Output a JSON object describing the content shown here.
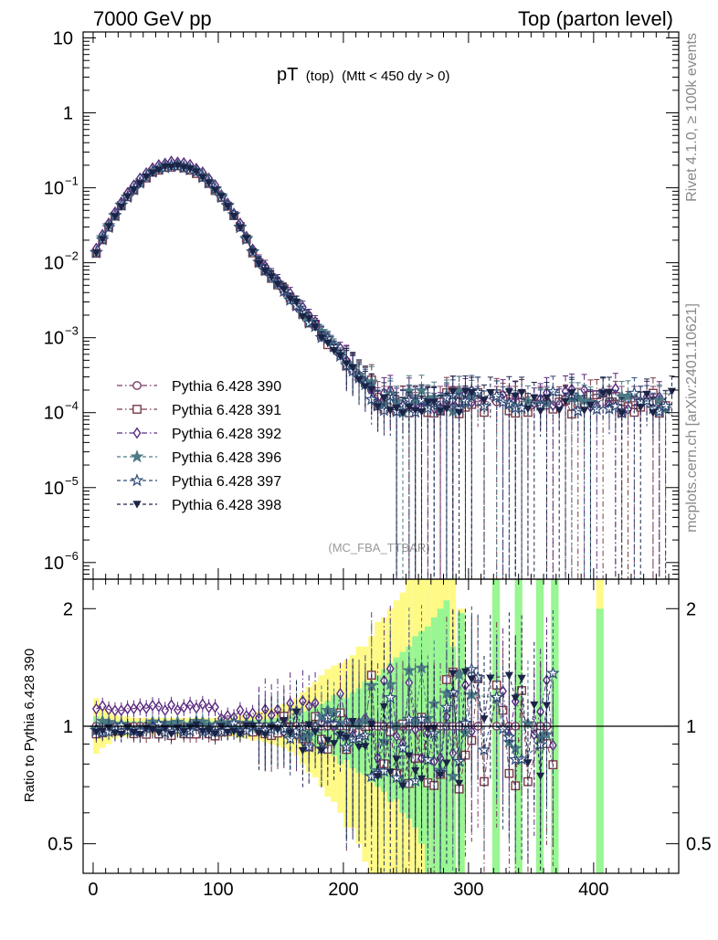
{
  "header": {
    "left": "7000 GeV pp",
    "right": "Top (parton level)"
  },
  "side_labels": {
    "rivet": "Rivet 4.1.0, ≥ 100k events",
    "mcplots": "mcplots.cern.ch [arXiv:2401.10621]"
  },
  "watermark": "(MC_FBA_TTBAR)",
  "chart_data": {
    "type": "scatter",
    "title": {
      "main": "pT",
      "sub": "(top)",
      "cond": "(Mtt < 450 dy > 0)"
    },
    "xlabel": "",
    "xlim": [
      -8,
      468
    ],
    "xticks": [
      {
        "v": 0,
        "label": "0"
      },
      {
        "v": 100,
        "label": "100"
      },
      {
        "v": 200,
        "label": "200"
      },
      {
        "v": 300,
        "label": "300"
      },
      {
        "v": 400,
        "label": "400"
      }
    ],
    "upper": {
      "ylabel": "",
      "yscale": "log",
      "ylim": [
        6e-07,
        12
      ],
      "yticks": [
        {
          "v": 10,
          "base": "10",
          "exp": ""
        },
        {
          "v": 1,
          "base": "1",
          "exp": ""
        },
        {
          "v": 0.1,
          "base": "10",
          "exp": "−1"
        },
        {
          "v": 0.01,
          "base": "10",
          "exp": "−2"
        },
        {
          "v": 0.001,
          "base": "10",
          "exp": "−3"
        },
        {
          "v": 0.0001,
          "base": "10",
          "exp": "−4"
        },
        {
          "v": 1e-05,
          "base": "10",
          "exp": "−5"
        },
        {
          "v": 1e-06,
          "base": "10",
          "exp": "−6"
        }
      ]
    },
    "ratio": {
      "ylabel": "Ratio to Pythia 6.428 390",
      "yscale": "log",
      "ylim": [
        0.42,
        2.38
      ],
      "yticks": [
        {
          "v": 0.5,
          "label": "0.5"
        },
        {
          "v": 1,
          "label": "1"
        },
        {
          "v": 2,
          "label": "2"
        }
      ],
      "reference": 1,
      "bands": [
        {
          "x0": 0,
          "x1": 5,
          "g": [
            0.97,
            1.06
          ],
          "y": [
            0.85,
            1.18
          ]
        },
        {
          "x0": 5,
          "x1": 10,
          "g": [
            0.98,
            1.04
          ],
          "y": [
            0.88,
            1.12
          ]
        },
        {
          "x0": 10,
          "x1": 15,
          "g": [
            0.97,
            1.03
          ],
          "y": [
            0.9,
            1.09
          ]
        },
        {
          "x0": 15,
          "x1": 20,
          "g": [
            0.98,
            1.03
          ],
          "y": [
            0.93,
            1.07
          ]
        },
        {
          "x0": 20,
          "x1": 25,
          "g": [
            0.98,
            1.03
          ],
          "y": [
            0.94,
            1.06
          ]
        },
        {
          "x0": 25,
          "x1": 30,
          "g": [
            0.98,
            1.03
          ],
          "y": [
            0.94,
            1.06
          ]
        },
        {
          "x0": 30,
          "x1": 35,
          "g": [
            0.98,
            1.03
          ],
          "y": [
            0.95,
            1.05
          ]
        },
        {
          "x0": 35,
          "x1": 40,
          "g": [
            0.98,
            1.03
          ],
          "y": [
            0.95,
            1.05
          ]
        },
        {
          "x0": 40,
          "x1": 45,
          "g": [
            0.98,
            1.03
          ],
          "y": [
            0.95,
            1.05
          ]
        },
        {
          "x0": 45,
          "x1": 50,
          "g": [
            0.98,
            1.03
          ],
          "y": [
            0.95,
            1.05
          ]
        },
        {
          "x0": 50,
          "x1": 55,
          "g": [
            0.98,
            1.03
          ],
          "y": [
            0.95,
            1.05
          ]
        },
        {
          "x0": 55,
          "x1": 60,
          "g": [
            0.98,
            1.03
          ],
          "y": [
            0.95,
            1.05
          ]
        },
        {
          "x0": 60,
          "x1": 65,
          "g": [
            0.98,
            1.03
          ],
          "y": [
            0.95,
            1.05
          ]
        },
        {
          "x0": 65,
          "x1": 70,
          "g": [
            0.98,
            1.03
          ],
          "y": [
            0.95,
            1.05
          ]
        },
        {
          "x0": 70,
          "x1": 75,
          "g": [
            0.98,
            1.03
          ],
          "y": [
            0.95,
            1.05
          ]
        },
        {
          "x0": 75,
          "x1": 80,
          "g": [
            0.98,
            1.03
          ],
          "y": [
            0.95,
            1.05
          ]
        },
        {
          "x0": 80,
          "x1": 85,
          "g": [
            0.98,
            1.03
          ],
          "y": [
            0.95,
            1.05
          ]
        },
        {
          "x0": 85,
          "x1": 90,
          "g": [
            0.98,
            1.03
          ],
          "y": [
            0.95,
            1.05
          ]
        },
        {
          "x0": 90,
          "x1": 95,
          "g": [
            0.98,
            1.03
          ],
          "y": [
            0.95,
            1.05
          ]
        },
        {
          "x0": 95,
          "x1": 100,
          "g": [
            0.98,
            1.03
          ],
          "y": [
            0.95,
            1.05
          ]
        },
        {
          "x0": 100,
          "x1": 105,
          "g": [
            0.98,
            1.03
          ],
          "y": [
            0.94,
            1.06
          ]
        },
        {
          "x0": 105,
          "x1": 110,
          "g": [
            0.98,
            1.03
          ],
          "y": [
            0.94,
            1.06
          ]
        },
        {
          "x0": 110,
          "x1": 115,
          "g": [
            0.97,
            1.03
          ],
          "y": [
            0.94,
            1.06
          ]
        },
        {
          "x0": 115,
          "x1": 120,
          "g": [
            0.97,
            1.03
          ],
          "y": [
            0.93,
            1.07
          ]
        },
        {
          "x0": 120,
          "x1": 125,
          "g": [
            0.97,
            1.03
          ],
          "y": [
            0.93,
            1.07
          ]
        },
        {
          "x0": 125,
          "x1": 130,
          "g": [
            0.97,
            1.04
          ],
          "y": [
            0.92,
            1.08
          ]
        },
        {
          "x0": 130,
          "x1": 135,
          "g": [
            0.97,
            1.04
          ],
          "y": [
            0.92,
            1.09
          ]
        },
        {
          "x0": 135,
          "x1": 140,
          "g": [
            0.96,
            1.04
          ],
          "y": [
            0.91,
            1.1
          ]
        },
        {
          "x0": 140,
          "x1": 145,
          "g": [
            0.96,
            1.05
          ],
          "y": [
            0.9,
            1.11
          ]
        },
        {
          "x0": 145,
          "x1": 150,
          "g": [
            0.95,
            1.05
          ],
          "y": [
            0.89,
            1.12
          ]
        },
        {
          "x0": 150,
          "x1": 155,
          "g": [
            0.95,
            1.06
          ],
          "y": [
            0.88,
            1.14
          ]
        },
        {
          "x0": 155,
          "x1": 160,
          "g": [
            0.94,
            1.06
          ],
          "y": [
            0.86,
            1.16
          ]
        },
        {
          "x0": 160,
          "x1": 165,
          "g": [
            0.93,
            1.07
          ],
          "y": [
            0.84,
            1.18
          ]
        },
        {
          "x0": 165,
          "x1": 170,
          "g": [
            0.92,
            1.09
          ],
          "y": [
            0.8,
            1.22
          ]
        },
        {
          "x0": 170,
          "x1": 175,
          "g": [
            0.9,
            1.1
          ],
          "y": [
            0.76,
            1.26
          ]
        },
        {
          "x0": 175,
          "x1": 180,
          "g": [
            0.89,
            1.12
          ],
          "y": [
            0.74,
            1.3
          ]
        },
        {
          "x0": 180,
          "x1": 185,
          "g": [
            0.86,
            1.14
          ],
          "y": [
            0.7,
            1.35
          ]
        },
        {
          "x0": 185,
          "x1": 190,
          "g": [
            0.86,
            1.16
          ],
          "y": [
            0.66,
            1.4
          ]
        },
        {
          "x0": 190,
          "x1": 195,
          "g": [
            0.84,
            1.2
          ],
          "y": [
            0.64,
            1.43
          ]
        },
        {
          "x0": 195,
          "x1": 200,
          "g": [
            0.8,
            1.22
          ],
          "y": [
            0.6,
            1.45
          ]
        },
        {
          "x0": 200,
          "x1": 205,
          "g": [
            0.82,
            1.18
          ],
          "y": [
            0.55,
            1.48
          ]
        },
        {
          "x0": 205,
          "x1": 210,
          "g": [
            0.78,
            1.22
          ],
          "y": [
            0.55,
            1.52
          ]
        },
        {
          "x0": 210,
          "x1": 215,
          "g": [
            0.76,
            1.25
          ],
          "y": [
            0.5,
            1.6
          ]
        },
        {
          "x0": 215,
          "x1": 220,
          "g": [
            0.75,
            1.3
          ],
          "y": [
            0.45,
            1.6
          ]
        },
        {
          "x0": 220,
          "x1": 225,
          "g": [
            0.72,
            1.3
          ],
          "y": [
            0.42,
            1.7
          ]
        },
        {
          "x0": 225,
          "x1": 230,
          "g": [
            0.7,
            1.35
          ],
          "y": [
            0.42,
            1.85
          ]
        },
        {
          "x0": 230,
          "x1": 235,
          "g": [
            0.68,
            1.4
          ],
          "y": [
            0.42,
            1.9
          ]
        },
        {
          "x0": 235,
          "x1": 240,
          "g": [
            0.64,
            1.45
          ],
          "y": [
            0.42,
            2.0
          ]
        },
        {
          "x0": 240,
          "x1": 245,
          "g": [
            0.65,
            1.5
          ],
          "y": [
            0.42,
            2.1
          ]
        },
        {
          "x0": 245,
          "x1": 250,
          "g": [
            0.6,
            1.55
          ],
          "y": [
            0.42,
            2.2
          ]
        },
        {
          "x0": 250,
          "x1": 255,
          "g": [
            0.58,
            1.6
          ],
          "y": [
            0.42,
            2.38
          ]
        },
        {
          "x0": 255,
          "x1": 260,
          "g": [
            0.55,
            1.7
          ],
          "y": [
            0.42,
            2.38
          ]
        },
        {
          "x0": 260,
          "x1": 265,
          "g": [
            0.5,
            1.75
          ],
          "y": [
            0.42,
            2.38
          ]
        },
        {
          "x0": 265,
          "x1": 270,
          "g": [
            0.42,
            1.8
          ],
          "y": [
            0.42,
            2.38
          ]
        },
        {
          "x0": 270,
          "x1": 275,
          "g": [
            0.42,
            1.9
          ],
          "y": [
            0.42,
            2.38
          ]
        },
        {
          "x0": 275,
          "x1": 280,
          "g": [
            0.42,
            2.0
          ],
          "y": [
            0.42,
            2.38
          ]
        },
        {
          "x0": 280,
          "x1": 285,
          "g": [
            0.42,
            2.1
          ],
          "y": [
            0.42,
            2.38
          ]
        },
        {
          "x0": 285,
          "x1": 290,
          "g": [
            0.42,
            1.6
          ],
          "y": [
            0.42,
            2.38
          ]
        },
        {
          "x0": 291,
          "x1": 297,
          "g": [
            0.42,
            1.95
          ],
          "y": [
            0.42,
            2.0
          ]
        },
        {
          "x0": 319,
          "x1": 325,
          "g": [
            0.42,
            2.38
          ],
          "y": [
            0.42,
            2.38
          ]
        },
        {
          "x0": 337,
          "x1": 343,
          "g": [
            0.42,
            2.38
          ],
          "y": [
            0.42,
            2.38
          ]
        },
        {
          "x0": 354,
          "x1": 360,
          "g": [
            0.42,
            2.38
          ],
          "y": [
            0.42,
            2.38
          ]
        },
        {
          "x0": 366,
          "x1": 372,
          "g": [
            0.42,
            2.38
          ],
          "y": [
            0.42,
            2.38
          ]
        },
        {
          "x0": 402,
          "x1": 408,
          "g": [
            0.42,
            2.0
          ],
          "y": [
            0.42,
            2.38
          ]
        }
      ]
    },
    "series": [
      {
        "name": "Pythia 6.428 390",
        "marker": "circle",
        "color": "#7a3b66",
        "dash": "6,3,1.5,3",
        "seed": 11,
        "ratio_bias": 0.0
      },
      {
        "name": "Pythia 6.428 391",
        "marker": "square",
        "color": "#7a3b48",
        "dash": "6,3,1.5,3",
        "seed": 23,
        "ratio_bias": -0.03
      },
      {
        "name": "Pythia 6.428 392",
        "marker": "diamond",
        "color": "#5b2a80",
        "dash": "6,3,1.5,3",
        "seed": 37,
        "ratio_bias": 0.07
      },
      {
        "name": "Pythia 6.428 396",
        "marker": "star",
        "color": "#4d7a84",
        "dash": "4,3",
        "seed": 41,
        "ratio_bias": 0.0
      },
      {
        "name": "Pythia 6.428 397",
        "marker": "star-open",
        "color": "#2e4a78",
        "dash": "4,3",
        "seed": 53,
        "ratio_bias": -0.01
      },
      {
        "name": "Pythia 6.428 398",
        "marker": "triangle-down",
        "color": "#1b2447",
        "dash": "4,3",
        "seed": 67,
        "ratio_bias": -0.02
      }
    ],
    "reference_shape": {
      "description": "bin centers every 5 GeV from 2.5 to 462.5",
      "x_start": 2.5,
      "x_step": 5,
      "n": 93,
      "peak_x": 65,
      "peak_y": 0.2,
      "first_y": 0.014,
      "tail_floor": 0.00014
    }
  }
}
